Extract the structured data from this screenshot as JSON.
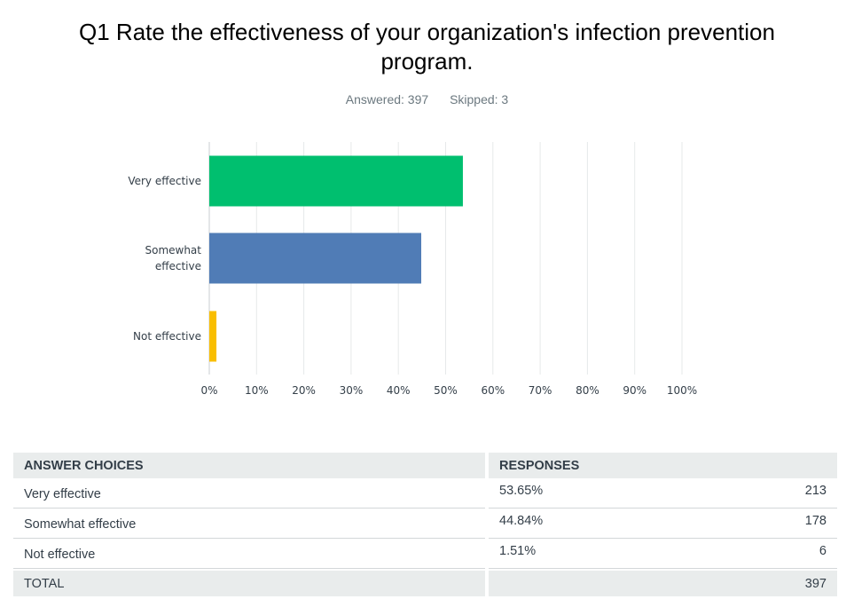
{
  "header": {
    "title": "Q1 Rate the effectiveness of your organization's infection prevention program.",
    "answered": "Answered: 397",
    "skipped": "Skipped: 3"
  },
  "colors": {
    "very_effective": "#00bf6f",
    "somewhat_effective": "#507cb6",
    "not_effective": "#f9be00",
    "grid": "#e6e9ea",
    "table_header_bg": "#e9ecec"
  },
  "chart_data": {
    "type": "bar",
    "orientation": "horizontal",
    "categories": [
      "Very effective",
      "Somewhat effective",
      "Not effective"
    ],
    "category_lines": [
      [
        "Very effective"
      ],
      [
        "Somewhat",
        "effective"
      ],
      [
        "Not effective"
      ]
    ],
    "values": [
      53.65,
      44.84,
      1.51
    ],
    "xlim": [
      0,
      100
    ],
    "xticks": [
      0,
      10,
      20,
      30,
      40,
      50,
      60,
      70,
      80,
      90,
      100
    ],
    "xtick_labels": [
      "0%",
      "10%",
      "20%",
      "30%",
      "40%",
      "50%",
      "60%",
      "70%",
      "80%",
      "90%",
      "100%"
    ],
    "grid": true,
    "title": "Q1 Rate the effectiveness of your organization's infection prevention program."
  },
  "table": {
    "headers": [
      "ANSWER CHOICES",
      "RESPONSES"
    ],
    "rows": [
      {
        "choice": "Very effective",
        "percent": "53.65%",
        "count": "213"
      },
      {
        "choice": "Somewhat effective",
        "percent": "44.84%",
        "count": "178"
      },
      {
        "choice": "Not effective",
        "percent": "1.51%",
        "count": "6"
      }
    ],
    "total_label": "TOTAL",
    "total_count": "397"
  }
}
